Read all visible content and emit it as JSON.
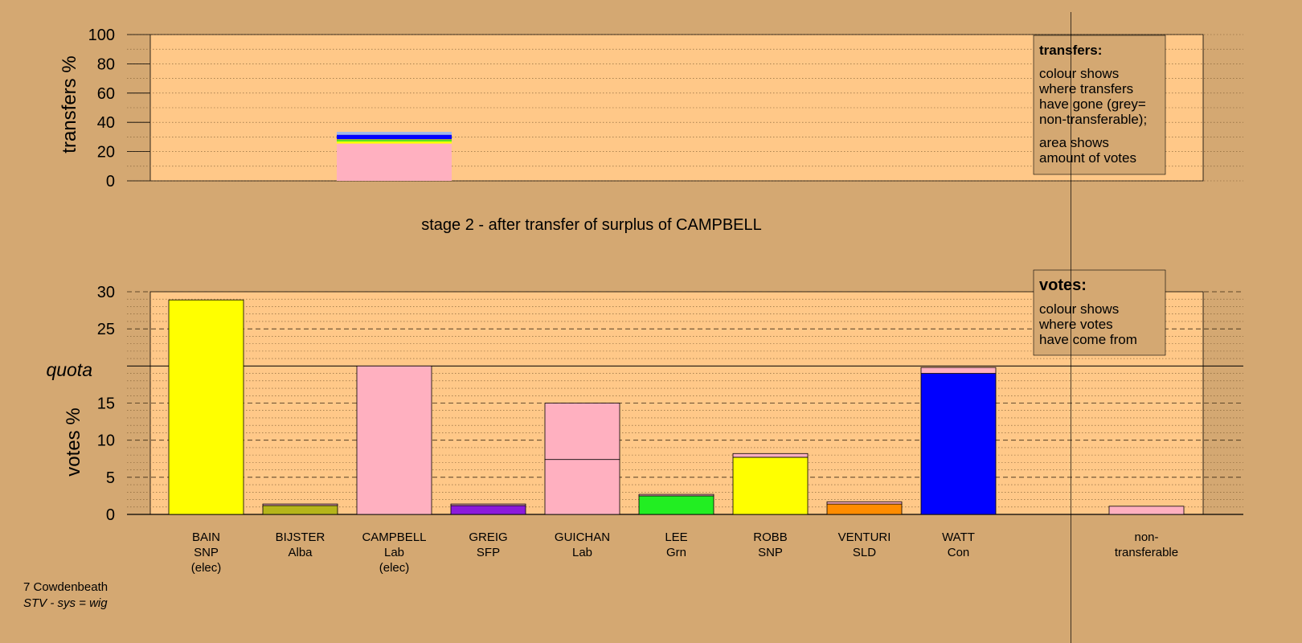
{
  "colors": {
    "background": "#D4A872",
    "panel": "#FFC888",
    "legend_box": "#D4A872",
    "SNP": "#FFFF00",
    "Alba": "#B5B51A",
    "Lab": "#FFB0C0",
    "SFP": "#8C1ADC",
    "Grn": "#22EE22",
    "SLD": "#FF8C00",
    "Con": "#0000FF",
    "transfer_light_blue": "#9FB7E8"
  },
  "chart_data": [
    {
      "type": "bar",
      "ylabel": "transfers %",
      "ylim": [
        0,
        100
      ],
      "yticks": [
        0,
        20,
        40,
        60,
        80,
        100
      ],
      "grid": "dotted",
      "transfer_bar": {
        "category": "CAMPBELL",
        "segments": [
          {
            "source": "Lab",
            "value": 25.5
          },
          {
            "source": "SNP",
            "value": 1.5
          },
          {
            "source": "Grn",
            "value": 0.8
          },
          {
            "source": "Alba",
            "value": 0.7
          },
          {
            "source": "Con",
            "value": 3.0
          },
          {
            "source": "transfer_light_blue",
            "value": 2.0
          }
        ]
      },
      "legend": {
        "placement": "top-right",
        "title": "transfers:",
        "lines1": [
          "colour shows",
          "where transfers",
          "have gone (grey=",
          "non-transferable);"
        ],
        "lines2": [
          "area shows",
          "amount of votes"
        ]
      }
    },
    {
      "type": "bar",
      "title": "stage 2 - after transfer of surplus of CAMPBELL",
      "ylabel": "votes %",
      "ylim": [
        0,
        30
      ],
      "yticks": [
        0,
        5,
        10,
        15,
        20,
        25,
        30
      ],
      "quota": {
        "label": "quota",
        "value": 20
      },
      "grid": "dotted",
      "categories": [
        {
          "name": "BAIN",
          "party": "SNP",
          "status": "(elec)",
          "segments": [
            {
              "source": "SNP",
              "value": 28.9
            }
          ]
        },
        {
          "name": "BIJSTER",
          "party": "Alba",
          "status": "",
          "segments": [
            {
              "source": "Alba",
              "value": 1.2
            },
            {
              "source": "Lab",
              "value": 0.2
            }
          ]
        },
        {
          "name": "CAMPBELL",
          "party": "Lab",
          "status": "(elec)",
          "segments": [
            {
              "source": "Lab",
              "value": 20.0
            }
          ]
        },
        {
          "name": "GREIG",
          "party": "SFP",
          "status": "",
          "segments": [
            {
              "source": "SFP",
              "value": 1.2
            },
            {
              "source": "Lab",
              "value": 0.2
            }
          ]
        },
        {
          "name": "GUICHAN",
          "party": "Lab",
          "status": "",
          "segments": [
            {
              "source": "Lab",
              "value": 7.4
            },
            {
              "source": "Lab",
              "value": 7.6
            }
          ]
        },
        {
          "name": "LEE",
          "party": "Grn",
          "status": "",
          "segments": [
            {
              "source": "Grn",
              "value": 2.5
            },
            {
              "source": "Lab",
              "value": 0.2
            }
          ]
        },
        {
          "name": "ROBB",
          "party": "SNP",
          "status": "",
          "segments": [
            {
              "source": "SNP",
              "value": 7.7
            },
            {
              "source": "Lab",
              "value": 0.5
            }
          ]
        },
        {
          "name": "VENTURI",
          "party": "SLD",
          "status": "",
          "segments": [
            {
              "source": "SLD",
              "value": 1.4
            },
            {
              "source": "Lab",
              "value": 0.3
            }
          ]
        },
        {
          "name": "WATT",
          "party": "Con",
          "status": "",
          "segments": [
            {
              "source": "Con",
              "value": 19.0
            },
            {
              "source": "Lab",
              "value": 0.8
            }
          ]
        }
      ],
      "nontransferable": {
        "line1": "non-",
        "line2": "transferable",
        "value": 1.1,
        "source": "Lab"
      },
      "legend": {
        "placement": "top-right",
        "title": "votes:",
        "lines": [
          "colour shows",
          "where votes",
          "have come from"
        ]
      }
    }
  ],
  "footer": {
    "constituency": "7 Cowdenbeath",
    "system": "STV - sys = wig"
  }
}
